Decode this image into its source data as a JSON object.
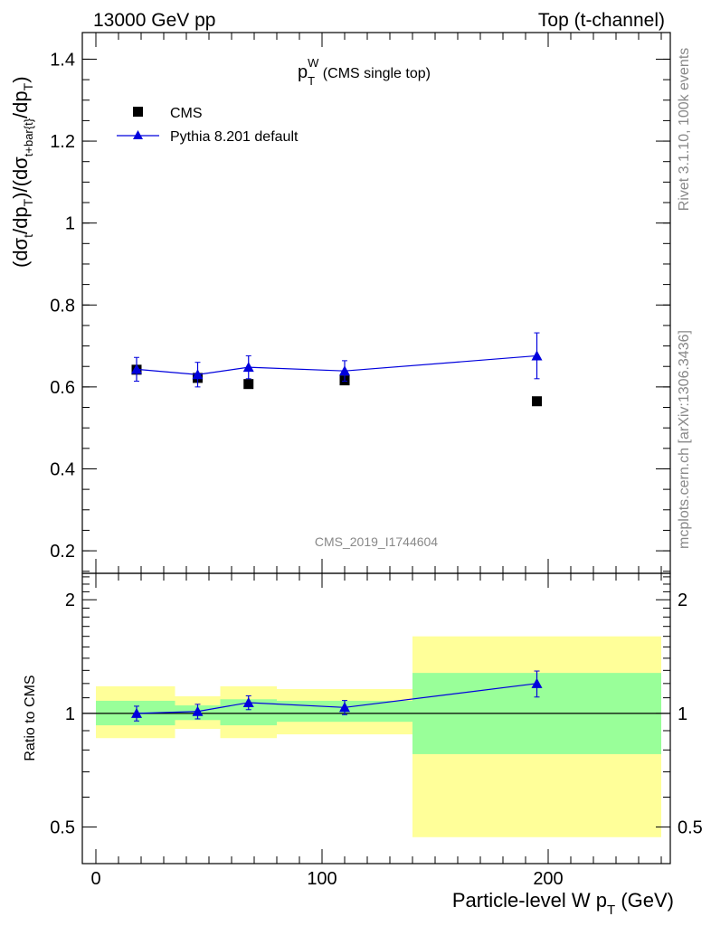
{
  "header": {
    "left": "13000 GeV pp",
    "right": "Top (t-channel)"
  },
  "side_labels": {
    "rivet": "Rivet 3.1.10,  100k events",
    "mcplots": "mcplots.cern.ch [arXiv:1306.3436]"
  },
  "plot_title": {
    "main": "p",
    "sub": "T",
    "sup": "W",
    "suffix": " (CMS single top)"
  },
  "watermark": "CMS_2019_I1744604",
  "legend": [
    {
      "label": "CMS",
      "marker": "square",
      "color": "#000000"
    },
    {
      "label": "Pythia 8.201 default",
      "marker": "triangle",
      "color": "#0000dd"
    }
  ],
  "axes": {
    "xlabel": {
      "main": "Particle-level W p",
      "sub": "T",
      "suffix": " (GeV)"
    },
    "ylabel_top": "(dσ_t/dp_T)/(dσ_t+bar{t}/dp_T)",
    "ylabel_bottom": "Ratio to CMS",
    "xlim": [
      -6,
      254
    ],
    "ylim_top": [
      0.145,
      1.465
    ],
    "ylim_bottom": [
      0.4,
      2.35
    ],
    "x_ticks": [
      "0",
      "100",
      "200"
    ],
    "y_ticks_top": [
      "0.2",
      "0.4",
      "0.6",
      "0.8",
      "1",
      "1.2",
      "1.4"
    ],
    "y_ticks_bottom": [
      "0.5",
      "1",
      "2"
    ]
  },
  "chart_data": [
    {
      "type": "scatter",
      "panel": "main",
      "series": [
        {
          "name": "CMS",
          "x": [
            18,
            45,
            67.5,
            110,
            195
          ],
          "y": [
            0.642,
            0.622,
            0.607,
            0.616,
            0.565
          ]
        },
        {
          "name": "Pythia 8.201 default",
          "x": [
            18,
            45,
            67.5,
            110,
            195
          ],
          "y": [
            0.643,
            0.63,
            0.648,
            0.639,
            0.676
          ],
          "yerr": [
            0.029,
            0.03,
            0.028,
            0.025,
            0.056
          ]
        }
      ],
      "bins": [
        [
          0,
          35
        ],
        [
          35,
          55
        ],
        [
          55,
          80
        ],
        [
          80,
          140
        ],
        [
          140,
          250
        ]
      ]
    },
    {
      "type": "line",
      "panel": "ratio",
      "x": [
        18,
        45,
        67.5,
        110,
        195
      ],
      "series": [
        {
          "name": "Pythia 8.201 default",
          "values": [
            1.0,
            1.012,
            1.068,
            1.037,
            1.2
          ],
          "err": [
            0.045,
            0.045,
            0.045,
            0.045,
            0.095
          ]
        }
      ],
      "bands": {
        "bins": [
          [
            0,
            35
          ],
          [
            35,
            55
          ],
          [
            55,
            80
          ],
          [
            80,
            140
          ],
          [
            140,
            250
          ]
        ],
        "stat_color": "#99ff99",
        "total_color": "#ffff99",
        "stat": [
          [
            0.93,
            1.08
          ],
          [
            0.96,
            1.05
          ],
          [
            0.93,
            1.09
          ],
          [
            0.95,
            1.08
          ],
          [
            0.78,
            1.28
          ]
        ],
        "total": [
          [
            0.86,
            1.18
          ],
          [
            0.91,
            1.11
          ],
          [
            0.86,
            1.18
          ],
          [
            0.88,
            1.16
          ],
          [
            0.47,
            1.6
          ]
        ]
      }
    }
  ]
}
